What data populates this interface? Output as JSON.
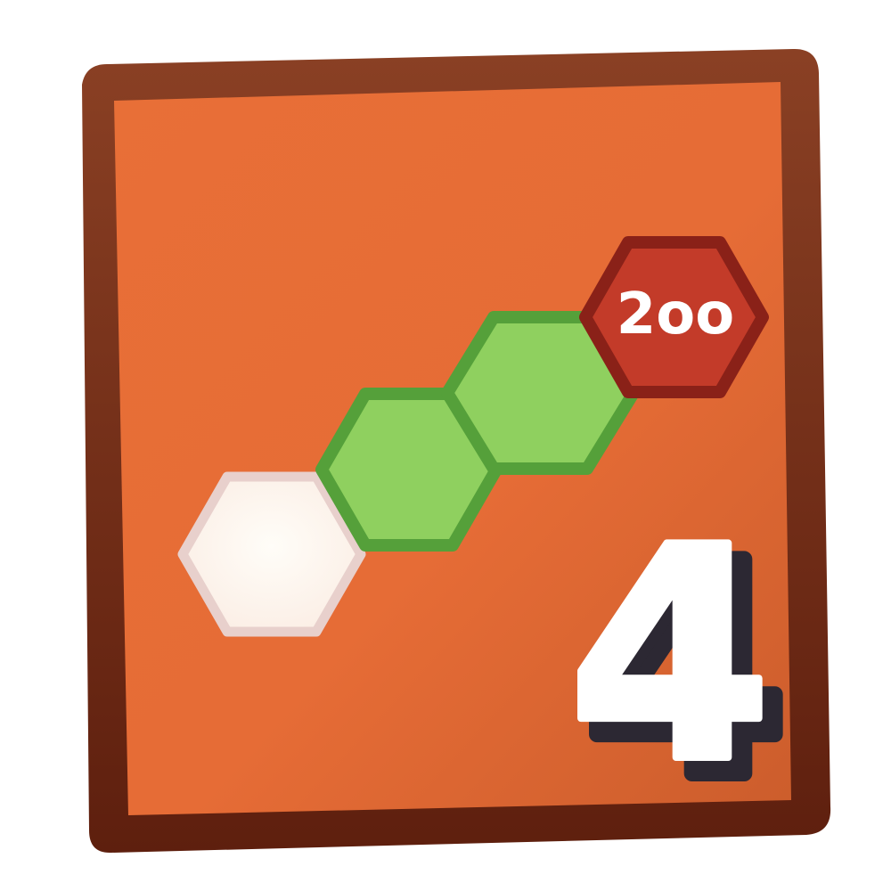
{
  "tile": {
    "frame_color": "#7a3418",
    "frame_color_dark": "#5e1f0e",
    "face_color": "#e66d36",
    "face_color_light": "#ec7a42",
    "face_color_dark": "#c95a2b"
  },
  "hex_path": {
    "cells": [
      {
        "kind": "start",
        "fill": "#fff7ef",
        "stroke": "#e9d3ce"
      },
      {
        "kind": "visited",
        "fill": "#8fd05f",
        "stroke": "#55a03a"
      },
      {
        "kind": "visited",
        "fill": "#8fd05f",
        "stroke": "#55a03a"
      },
      {
        "kind": "goal",
        "fill": "#c23a28",
        "stroke": "#8a1f16",
        "label": "2oo"
      }
    ]
  },
  "level": {
    "number": "4",
    "fill": "#ffffff",
    "outline": "#ffffff",
    "shadow": "#2c2833"
  }
}
